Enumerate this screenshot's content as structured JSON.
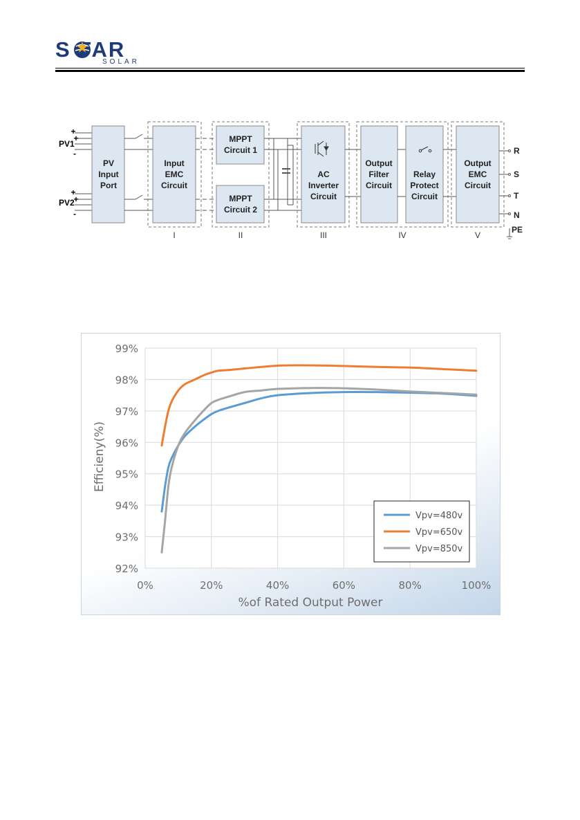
{
  "header": {
    "logo_main": "S   FAR",
    "logo_sub": "SOLAR"
  },
  "diagram": {
    "pv1_label": "PV1",
    "pv2_label": "PV2",
    "plus": "+",
    "minus": "-",
    "blocks": {
      "pv_input": [
        "PV",
        "Input",
        "Port"
      ],
      "input_emc": [
        "Input",
        "EMC",
        "Circuit"
      ],
      "mppt1": [
        "MPPT",
        "Circuit 1"
      ],
      "mppt2": [
        "MPPT",
        "Circuit 2"
      ],
      "ac_inverter": [
        "AC",
        "Inverter",
        "Circuit"
      ],
      "output_filter": [
        "Output",
        "Filter",
        "Circuit"
      ],
      "relay_protect": [
        "Relay",
        "Protect",
        "Circuit"
      ],
      "output_emc": [
        "Output",
        "EMC",
        "Circuit"
      ]
    },
    "stages": [
      "I",
      "II",
      "III",
      "IV",
      "V"
    ],
    "outputs": [
      "R",
      "S",
      "T",
      "N"
    ],
    "pe_label": "PE"
  },
  "chart_data": {
    "type": "line",
    "title": "",
    "xlabel": "%of Rated Output Power",
    "ylabel": "Efficieny(%)",
    "xlim": [
      0,
      100
    ],
    "ylim": [
      92,
      99
    ],
    "xticks": [
      "0%",
      "20%",
      "40%",
      "60%",
      "80%",
      "100%"
    ],
    "yticks": [
      "92%",
      "93%",
      "94%",
      "95%",
      "96%",
      "97%",
      "98%",
      "99%"
    ],
    "grid": true,
    "legend_position": "bottom-right",
    "series": [
      {
        "name": "Vpv=480v",
        "color": "#5b9bd5",
        "x": [
          5,
          6,
          7,
          8,
          10,
          12,
          15,
          18,
          20,
          22,
          25,
          30,
          35,
          40,
          50,
          60,
          70,
          80,
          90,
          100
        ],
        "y": [
          93.8,
          94.6,
          95.2,
          95.5,
          95.9,
          96.2,
          96.5,
          96.75,
          96.9,
          97.0,
          97.1,
          97.25,
          97.4,
          97.5,
          97.57,
          97.6,
          97.6,
          97.58,
          97.55,
          97.48
        ]
      },
      {
        "name": "Vpv=650v",
        "color": "#ed7d31",
        "x": [
          5,
          6,
          7,
          8,
          10,
          12,
          15,
          18,
          20,
          22,
          25,
          30,
          40,
          50,
          60,
          70,
          80,
          90,
          100
        ],
        "y": [
          95.9,
          96.5,
          97.0,
          97.3,
          97.65,
          97.85,
          98.0,
          98.15,
          98.22,
          98.28,
          98.3,
          98.35,
          98.44,
          98.45,
          98.43,
          98.4,
          98.38,
          98.33,
          98.28
        ]
      },
      {
        "name": "Vpv=850v",
        "color": "#a5a5a5",
        "x": [
          5,
          6,
          7,
          8,
          10,
          12,
          15,
          18,
          20,
          22,
          25,
          30,
          35,
          40,
          50,
          60,
          70,
          80,
          90,
          100
        ],
        "y": [
          92.5,
          93.5,
          94.6,
          95.2,
          95.9,
          96.3,
          96.7,
          97.05,
          97.25,
          97.35,
          97.45,
          97.6,
          97.65,
          97.7,
          97.73,
          97.72,
          97.68,
          97.62,
          97.57,
          97.52
        ]
      }
    ]
  }
}
